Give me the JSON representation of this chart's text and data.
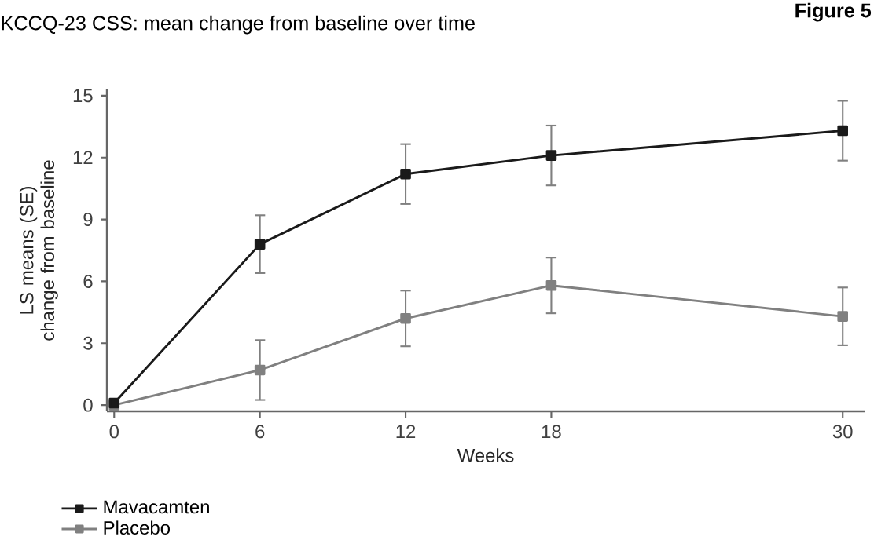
{
  "chart_data": {
    "type": "line",
    "title": "KCCQ-23 CSS: mean change from baseline over time",
    "annotations": [
      "Figure 5"
    ],
    "xlabel": "Weeks",
    "ylabel": "LS means (SE) change from baseline",
    "x": [
      0,
      6,
      12,
      18,
      30
    ],
    "series": [
      {
        "name": "Mavacamten",
        "color": "#1a1a1a",
        "values": [
          0.1,
          7.8,
          11.2,
          12.1,
          13.3
        ],
        "errors": [
          null,
          1.4,
          1.45,
          1.45,
          1.45
        ]
      },
      {
        "name": "Placebo",
        "color": "#808080",
        "values": [
          0,
          1.7,
          4.2,
          5.8,
          4.3
        ],
        "errors": [
          null,
          1.45,
          1.35,
          1.35,
          1.4
        ]
      }
    ],
    "xlim": [
      -0.3,
      30.9
    ],
    "ylim": [
      -0.3,
      15.3
    ],
    "xticks": [
      0,
      6,
      12,
      18,
      30
    ],
    "yticks": [
      0,
      3,
      6,
      9,
      12,
      15
    ],
    "marker": "square",
    "line_style": "solid",
    "grid": false,
    "legend": "bottom left"
  }
}
